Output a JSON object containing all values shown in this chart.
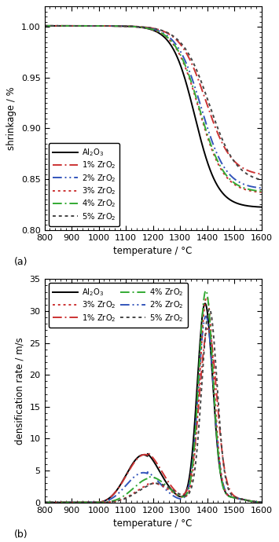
{
  "panel_a": {
    "xlabel": "temperature / °C",
    "ylabel": "shrinkage / %",
    "xlim": [
      800,
      1600
    ],
    "ylim": [
      0.8,
      1.02
    ],
    "yticks": [
      0.8,
      0.85,
      0.9,
      0.95,
      1.0
    ],
    "xticks": [
      800,
      900,
      1000,
      1100,
      1200,
      1300,
      1400,
      1500,
      1600
    ],
    "label": "(a)"
  },
  "panel_b": {
    "xlabel": "temperature / °C",
    "ylabel": "densification rate / m/s",
    "xlim": [
      800,
      1600
    ],
    "ylim": [
      0,
      35
    ],
    "yticks": [
      0,
      5,
      10,
      15,
      20,
      25,
      30,
      35
    ],
    "xticks": [
      800,
      900,
      1000,
      1100,
      1200,
      1300,
      1400,
      1500,
      1600
    ],
    "label": "(b)"
  },
  "labels": [
    "Al$_2$O$_3$",
    "1% ZrO$_2$",
    "2% ZrO$_2$",
    "3% ZrO$_2$",
    "4% ZrO$_2$",
    "5% ZrO$_2$"
  ],
  "colors": [
    "#000000",
    "#cc3333",
    "#3355bb",
    "#cc3333",
    "#33aa33",
    "#333333"
  ],
  "linewidths": [
    1.4,
    1.4,
    1.4,
    1.4,
    1.4,
    1.4
  ]
}
